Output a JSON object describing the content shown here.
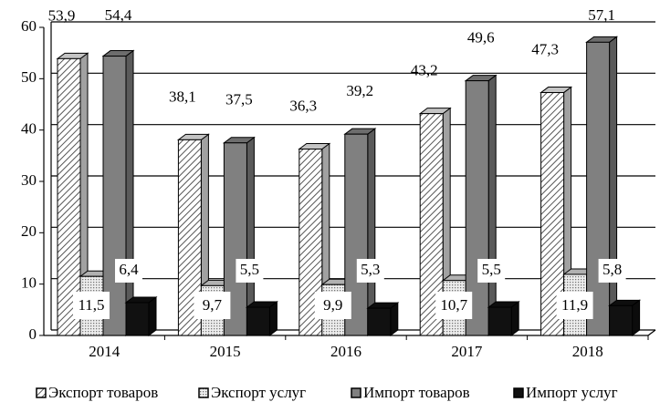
{
  "chart_data": {
    "type": "bar3d",
    "categories": [
      "2014",
      "2015",
      "2016",
      "2017",
      "2018"
    ],
    "series": [
      {
        "name": "Экспорт товаров",
        "color": "#e6e6e6",
        "values": [
          53.9,
          38.1,
          36.3,
          43.2,
          47.3
        ],
        "value_labels": [
          "53,9",
          "38,1",
          "36,3",
          "43,2",
          "47,3"
        ]
      },
      {
        "name": "Экспорт услуг",
        "color": "#d0d0d0",
        "values": [
          11.5,
          9.7,
          9.9,
          10.7,
          11.9
        ],
        "value_labels": [
          "11,5",
          "9,7",
          "9,9",
          "10,7",
          "11,9"
        ]
      },
      {
        "name": "Импорт товаров",
        "color": "#808080",
        "values": [
          54.4,
          37.5,
          39.2,
          49.6,
          57.1
        ],
        "value_labels": [
          "54,4",
          "37,5",
          "39,2",
          "49,6",
          "57,1"
        ]
      },
      {
        "name": "Импорт услуг",
        "color": "#111111",
        "values": [
          6.4,
          5.5,
          5.3,
          5.5,
          5.8
        ],
        "value_labels": [
          "6,4",
          "5,5",
          "5,3",
          "5,5",
          "5,8"
        ]
      }
    ],
    "ylim": [
      0,
      60
    ],
    "yticks": [
      0,
      10,
      20,
      30,
      40,
      50,
      60
    ],
    "grid": true
  }
}
